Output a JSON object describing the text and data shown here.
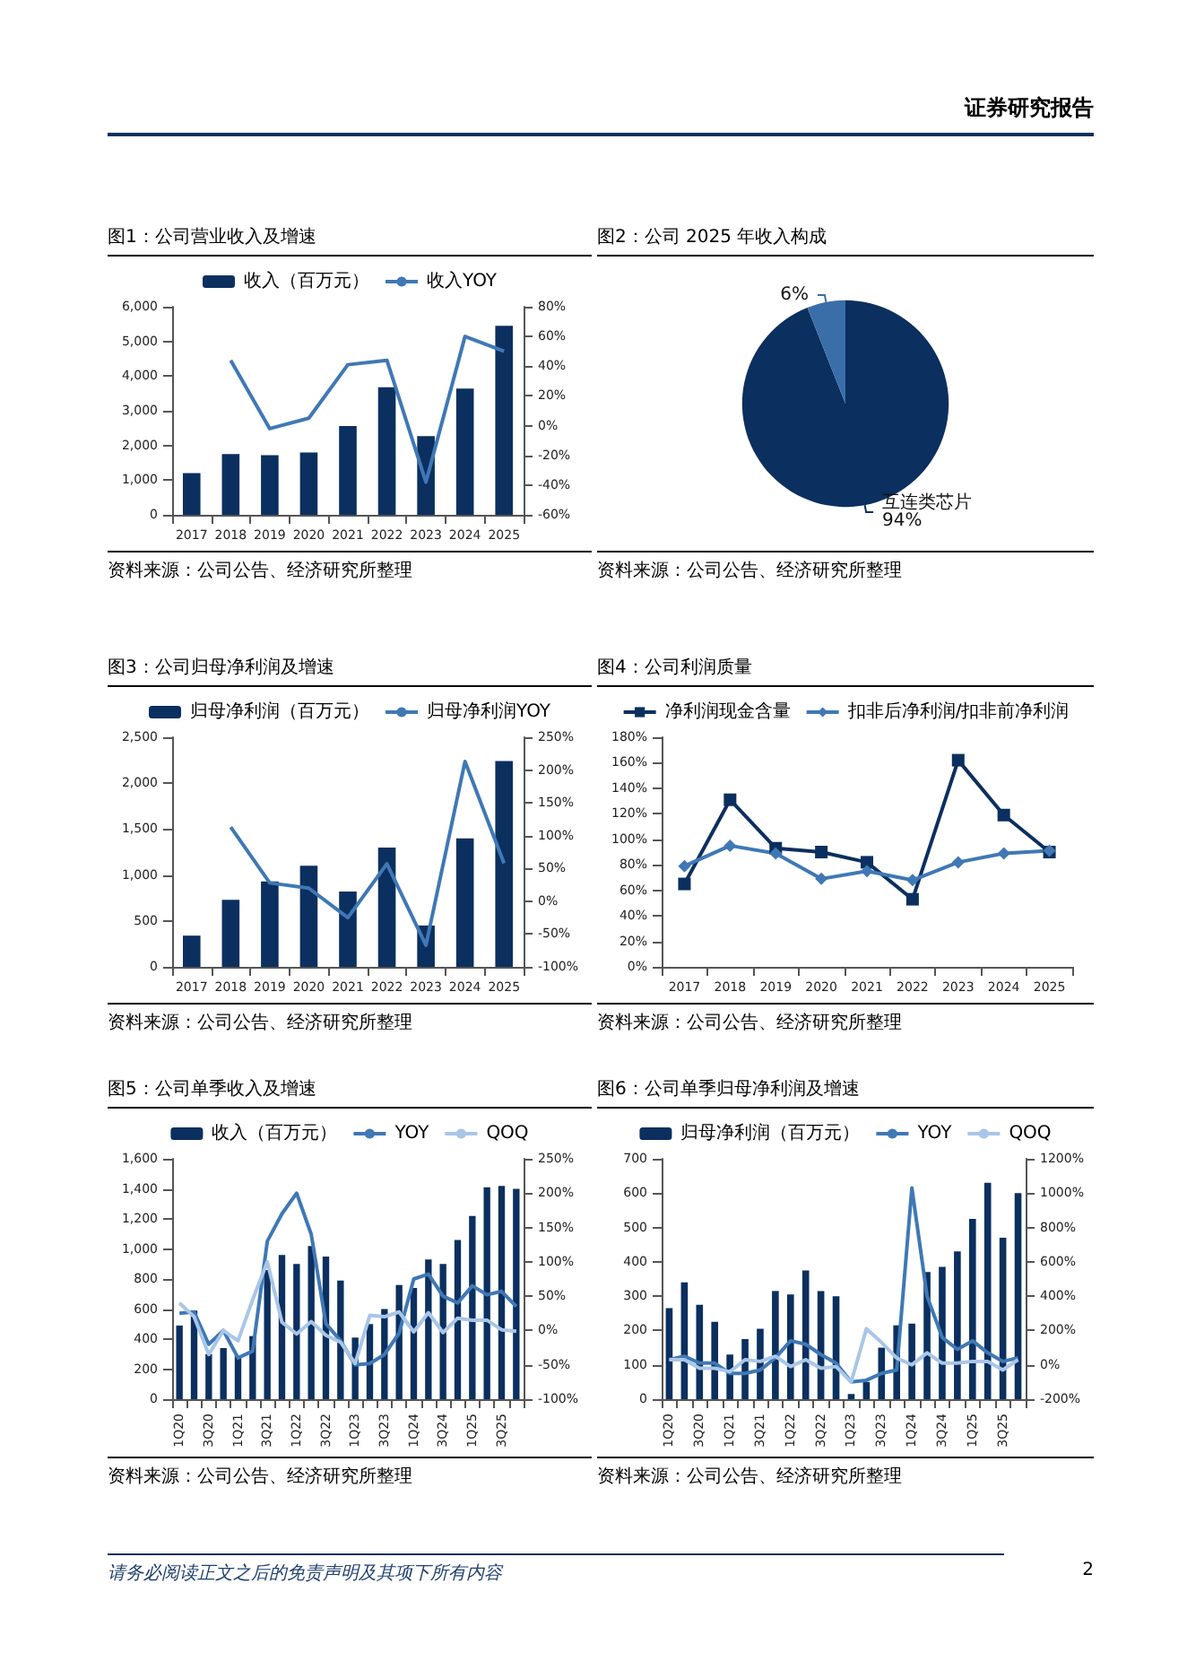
{
  "chart_data": [
    {
      "type": "bar",
      "title": "图1：公司营业收入及增速",
      "categories": [
        "2017",
        "2018",
        "2019",
        "2020",
        "2021",
        "2022",
        "2023",
        "2024",
        "2025"
      ],
      "series": [
        {
          "name": "收入（百万元）",
          "type": "bar",
          "color": "#0b2f5f",
          "values": [
            1200,
            1750,
            1720,
            1800,
            2560,
            3680,
            2270,
            3640,
            5450
          ]
        },
        {
          "name": "收入YOY",
          "type": "line",
          "axis": "y2",
          "color": "#3f78b5",
          "marker": "none",
          "values": [
            null,
            44,
            -2,
            5,
            41,
            44,
            -38,
            60,
            50
          ]
        }
      ],
      "ylim": [
        0,
        6000
      ],
      "yticks": [
        0,
        {
          "value": 1000,
          "label": "1,000"
        },
        {
          "value": 2000,
          "label": "2,000"
        },
        {
          "value": 3000,
          "label": "3,000"
        },
        {
          "value": 4000,
          "label": "4,000"
        },
        {
          "value": 5000,
          "label": "5,000"
        },
        {
          "value": 6000,
          "label": "6,000"
        }
      ],
      "y2lim": [
        -60,
        80
      ],
      "y2ticks": [
        {
          "value": -60,
          "label": "-60%"
        },
        {
          "value": -40,
          "label": "-40%"
        },
        {
          "value": -20,
          "label": "-20%"
        },
        {
          "value": 0,
          "label": "0%"
        },
        {
          "value": 20,
          "label": "20%"
        },
        {
          "value": 40,
          "label": "40%"
        },
        {
          "value": 60,
          "label": "60%"
        },
        {
          "value": 80,
          "label": "80%"
        }
      ],
      "legend": "top",
      "grid": false,
      "annotations": [
        "资料来源：公司公告、经济研究所整理",
        "证券研究报告"
      ]
    },
    {
      "type": "pie",
      "title": "图2：公司 2025 年收入构成",
      "categories": [
        "互连类芯片",
        null
      ],
      "values": [
        94,
        6
      ],
      "colors": [
        "#0b2f5f",
        "#3a6ea8"
      ],
      "value_labels": [
        "94%",
        "6%"
      ],
      "legend": false,
      "annotations": [
        "资料来源：公司公告、经济研究所整理"
      ]
    },
    {
      "type": "bar",
      "title": "图3：公司归母净利润及增速",
      "categories": [
        "2017",
        "2018",
        "2019",
        "2020",
        "2021",
        "2022",
        "2023",
        "2024",
        "2025"
      ],
      "series": [
        {
          "name": "归母净利润（百万元）",
          "type": "bar",
          "color": "#0b2f5f",
          "values": [
            340,
            730,
            930,
            1100,
            820,
            1300,
            450,
            1400,
            2240
          ]
        },
        {
          "name": "归母净利润YOY",
          "type": "line",
          "axis": "y2",
          "color": "#3f78b5",
          "marker": "none",
          "values": [
            null,
            113,
            28,
            20,
            -25,
            57,
            -67,
            213,
            58
          ]
        }
      ],
      "ylim": [
        0,
        2500
      ],
      "yticks": [
        0,
        500,
        {
          "value": 1000,
          "label": "1,000"
        },
        {
          "value": 1500,
          "label": "1,500"
        },
        {
          "value": 2000,
          "label": "2,000"
        },
        {
          "value": 2500,
          "label": "2,500"
        }
      ],
      "y2lim": [
        -100,
        250
      ],
      "y2ticks": [
        {
          "value": -100,
          "label": "-100%"
        },
        {
          "value": -50,
          "label": "-50%"
        },
        {
          "value": 0,
          "label": "0%"
        },
        {
          "value": 50,
          "label": "50%"
        },
        {
          "value": 100,
          "label": "100%"
        },
        {
          "value": 150,
          "label": "150%"
        },
        {
          "value": 200,
          "label": "200%"
        },
        {
          "value": 250,
          "label": "250%"
        }
      ],
      "legend": "top",
      "grid": false,
      "annotations": [
        "资料来源：公司公告、经济研究所整理"
      ]
    },
    {
      "type": "line",
      "title": "图4：公司利润质量",
      "categories": [
        "2017",
        "2018",
        "2019",
        "2020",
        "2021",
        "2022",
        "2023",
        "2024",
        "2025"
      ],
      "series": [
        {
          "name": "净利润现金含量",
          "color": "#0b2f5f",
          "marker": "square",
          "values": [
            65,
            131,
            93,
            90,
            82,
            53,
            162,
            119,
            90
          ]
        },
        {
          "name": "扣非后净利润/扣非前净利润",
          "color": "#3f78b5",
          "marker": "diamond",
          "values": [
            79,
            95,
            89,
            69,
            75,
            68,
            82,
            89,
            91
          ]
        }
      ],
      "ylim": [
        0,
        180
      ],
      "yticks": [
        {
          "value": 0,
          "label": "0%"
        },
        {
          "value": 20,
          "label": "20%"
        },
        {
          "value": 40,
          "label": "40%"
        },
        {
          "value": 60,
          "label": "60%"
        },
        {
          "value": 80,
          "label": "80%"
        },
        {
          "value": 100,
          "label": "100%"
        },
        {
          "value": 120,
          "label": "120%"
        },
        {
          "value": 140,
          "label": "140%"
        },
        {
          "value": 160,
          "label": "160%"
        },
        {
          "value": 180,
          "label": "180%"
        }
      ],
      "legend": "top",
      "grid": false,
      "annotations": [
        "资料来源：公司公告、经济研究所整理"
      ]
    },
    {
      "type": "bar",
      "title": "图5：公司单季收入及增速",
      "categories": [
        "1Q20",
        null,
        "3Q20",
        null,
        "1Q21",
        null,
        "3Q21",
        null,
        "1Q22",
        null,
        "3Q22",
        null,
        "1Q23",
        null,
        "3Q23",
        null,
        "1Q24",
        null,
        "3Q24",
        null,
        "1Q25",
        null,
        "3Q25",
        null
      ],
      "series": [
        {
          "name": "收入（百万元）",
          "type": "bar",
          "color": "#0b2f5f",
          "values": [
            490,
            590,
            300,
            340,
            290,
            420,
            860,
            960,
            900,
            1020,
            950,
            790,
            410,
            500,
            600,
            760,
            740,
            930,
            900,
            1060,
            1220,
            1410,
            1420,
            1400
          ]
        },
        {
          "name": "YOY",
          "type": "line",
          "axis": "y2",
          "color": "#3f78b5",
          "marker": "none",
          "values": [
            25,
            27,
            -20,
            0,
            -40,
            -30,
            130,
            170,
            200,
            140,
            10,
            -15,
            -50,
            -48,
            -35,
            -4,
            75,
            82,
            50,
            40,
            65,
            52,
            57,
            35
          ]
        },
        {
          "name": "QOQ",
          "type": "line",
          "axis": "y2",
          "color": "#a9c6e8",
          "marker": "none",
          "values": [
            40,
            20,
            -35,
            0,
            -15,
            45,
            100,
            12,
            -5,
            13,
            -7,
            -17,
            -48,
            22,
            20,
            27,
            -2,
            26,
            -3,
            18,
            15,
            15,
            1,
            -1
          ]
        }
      ],
      "ylim": [
        0,
        1600
      ],
      "yticks": [
        0,
        200,
        400,
        600,
        800,
        {
          "value": 1000,
          "label": "1,000"
        },
        {
          "value": 1200,
          "label": "1,200"
        },
        {
          "value": 1400,
          "label": "1,400"
        },
        {
          "value": 1600,
          "label": "1,600"
        }
      ],
      "y2lim": [
        -100,
        250
      ],
      "y2ticks": [
        {
          "value": -100,
          "label": "-100%"
        },
        {
          "value": -50,
          "label": "-50%"
        },
        {
          "value": 0,
          "label": "0%"
        },
        {
          "value": 50,
          "label": "50%"
        },
        {
          "value": 100,
          "label": "100%"
        },
        {
          "value": 150,
          "label": "150%"
        },
        {
          "value": 200,
          "label": "200%"
        },
        {
          "value": 250,
          "label": "250%"
        }
      ],
      "legend": "top",
      "grid": false,
      "annotations": [
        "资料来源：公司公告、经济研究所整理"
      ]
    },
    {
      "type": "bar",
      "title": "图6：公司单季归母净利润及增速",
      "categories": [
        "1Q20",
        null,
        "3Q20",
        null,
        "1Q21",
        null,
        "3Q21",
        null,
        "1Q22",
        null,
        "3Q22",
        null,
        "1Q23",
        null,
        "3Q23",
        null,
        "1Q24",
        null,
        "3Q24",
        null,
        "1Q25",
        null,
        "3Q25",
        null
      ],
      "series": [
        {
          "name": "归母净利润（百万元）",
          "type": "bar",
          "color": "#0b2f5f",
          "values": [
            265,
            340,
            275,
            225,
            130,
            175,
            205,
            315,
            305,
            375,
            315,
            300,
            15,
            50,
            150,
            215,
            220,
            370,
            385,
            430,
            525,
            630,
            470,
            600
          ]
        },
        {
          "name": "YOY",
          "type": "line",
          "axis": "y2",
          "color": "#3f78b5",
          "marker": "none",
          "values": [
            30,
            50,
            10,
            10,
            -50,
            -50,
            -30,
            40,
            140,
            120,
            60,
            10,
            -100,
            -90,
            -50,
            -30,
            1030,
            400,
            160,
            90,
            140,
            70,
            20,
            40
          ]
        },
        {
          "name": "QOQ",
          "type": "line",
          "axis": "y2",
          "color": "#a9c6e8",
          "marker": "none",
          "values": [
            30,
            30,
            -20,
            -20,
            -40,
            30,
            20,
            50,
            -10,
            30,
            -20,
            -10,
            -100,
            210,
            130,
            40,
            0,
            70,
            10,
            10,
            20,
            20,
            -30,
            30
          ]
        }
      ],
      "ylim": [
        0,
        700
      ],
      "yticks": [
        0,
        100,
        200,
        300,
        400,
        500,
        600,
        700
      ],
      "y2lim": [
        -200,
        1200
      ],
      "y2ticks": [
        {
          "value": -200,
          "label": "-200%"
        },
        {
          "value": 0,
          "label": "0%"
        },
        {
          "value": 200,
          "label": "200%"
        },
        {
          "value": 400,
          "label": "400%"
        },
        {
          "value": 600,
          "label": "600%"
        },
        {
          "value": 800,
          "label": "800%"
        },
        {
          "value": 1000,
          "label": "1000%"
        },
        {
          "value": 1200,
          "label": "1200%"
        }
      ],
      "legend": "top",
      "grid": false,
      "annotations": [
        "资料来源：公司公告、经济研究所整理",
        "请务必阅读正文之后的免责声明及其项下所有内容",
        "2"
      ]
    }
  ]
}
